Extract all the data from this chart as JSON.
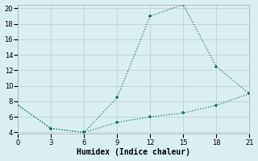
{
  "line1_x": [
    0,
    3,
    6,
    9,
    12,
    15,
    18,
    21
  ],
  "line1_y": [
    7.5,
    4.5,
    4.0,
    8.5,
    19.0,
    20.5,
    12.5,
    9.0
  ],
  "line2_x": [
    0,
    3,
    6,
    9,
    12,
    15,
    18,
    21
  ],
  "line2_y": [
    7.5,
    4.5,
    4.0,
    5.3,
    6.0,
    6.5,
    7.5,
    9.0
  ],
  "line_color": "#1a7a6e",
  "bg_color": "#d9f0f0",
  "grid_color": "#c0d8d8",
  "xlabel": "Humidex (Indice chaleur)",
  "xlim": [
    0,
    21
  ],
  "ylim": [
    4,
    20
  ],
  "xticks": [
    0,
    3,
    6,
    9,
    12,
    15,
    18,
    21
  ],
  "yticks": [
    4,
    6,
    8,
    10,
    12,
    14,
    16,
    18,
    20
  ],
  "font_size": 7,
  "marker_size": 3.5
}
